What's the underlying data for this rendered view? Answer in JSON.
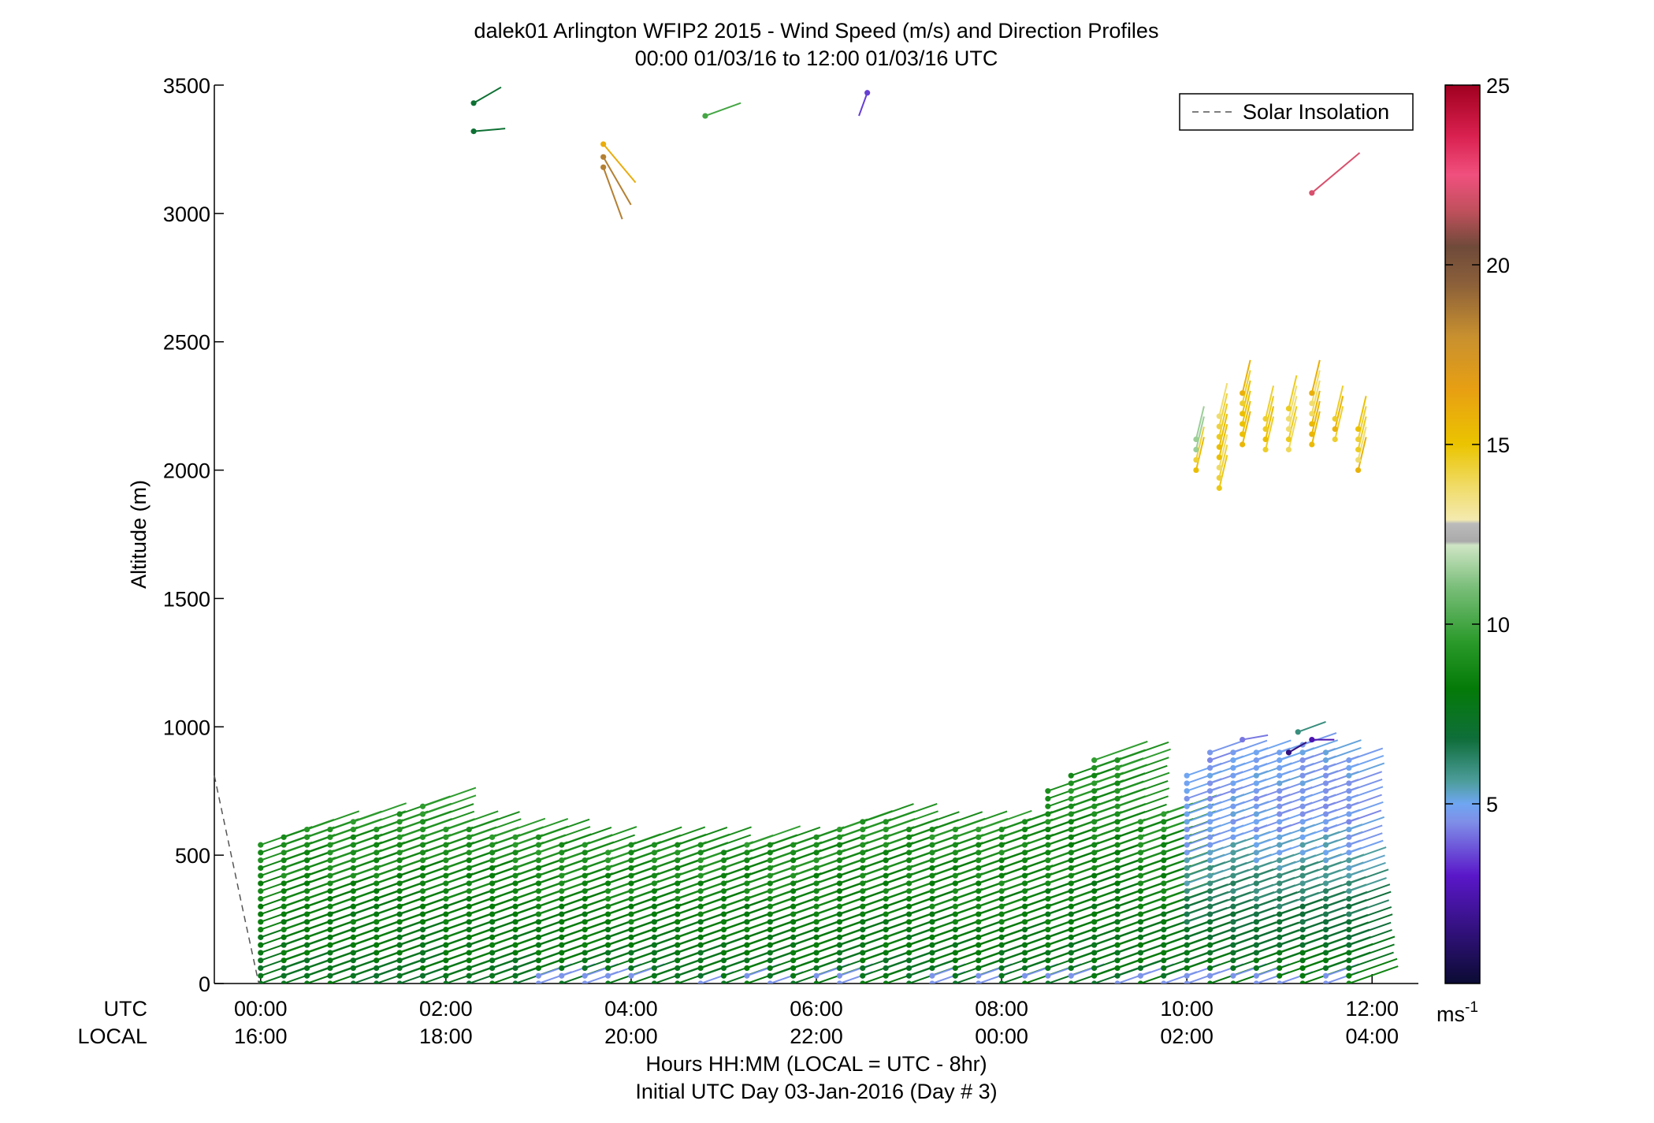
{
  "chart_data": {
    "type": "wind-barb-profile",
    "title_line1": "dalek01 Arlington WFIP2 2015 - Wind Speed (m/s) and Direction Profiles",
    "title_line2": "00:00 01/03/16 to 12:00 01/03/16  UTC",
    "ylabel": "Altitude (m)",
    "ylim": [
      0,
      3500
    ],
    "yticks": [
      "0",
      "500",
      "1000",
      "1500",
      "2000",
      "2500",
      "3000",
      "3500"
    ],
    "xlim_hours_utc": [
      -0.5,
      12.5
    ],
    "x_row_labels": [
      "UTC",
      "LOCAL"
    ],
    "x_tick_hours": [
      0,
      2,
      4,
      6,
      8,
      10,
      12
    ],
    "x_ticks_utc": [
      "00:00",
      "02:00",
      "04:00",
      "06:00",
      "08:00",
      "10:00",
      "12:00"
    ],
    "x_ticks_local": [
      "16:00",
      "18:00",
      "20:00",
      "22:00",
      "00:00",
      "02:00",
      "04:00"
    ],
    "xlabel_line1": "Hours HH:MM  (LOCAL = UTC - 8hr)",
    "xlabel_line2": "Initial UTC Day 03-Jan-2016 (Day # 3)",
    "legend": {
      "label": "Solar Insolation",
      "placement": "top-right",
      "style": "dashed gray"
    },
    "colorbar": {
      "range": [
        0,
        25
      ],
      "ticks": [
        "5",
        "10",
        "15",
        "20",
        "25"
      ],
      "unit_base": "ms",
      "unit_exp": "-1",
      "stops": [
        [
          0.0,
          "#0b0b33"
        ],
        [
          3.0,
          "#5a17c9"
        ],
        [
          4.5,
          "#7f8fe8"
        ],
        [
          5.0,
          "#6fa6f2"
        ],
        [
          5.6,
          "#4e9e9e"
        ],
        [
          6.8,
          "#0f6e3a"
        ],
        [
          8.2,
          "#047a08"
        ],
        [
          9.5,
          "#2a9a2a"
        ],
        [
          11.0,
          "#78bd78"
        ],
        [
          12.2,
          "#cfe5c5"
        ],
        [
          12.3,
          "#aaaaaa"
        ],
        [
          12.8,
          "#bbbbbb"
        ],
        [
          12.9,
          "#f4eab0"
        ],
        [
          13.8,
          "#f0dc6a"
        ],
        [
          15.0,
          "#ebc400"
        ],
        [
          16.5,
          "#e8a012"
        ],
        [
          18.0,
          "#c8902f"
        ],
        [
          19.5,
          "#8a5f3a"
        ],
        [
          20.5,
          "#6f4a3a"
        ],
        [
          21.5,
          "#c0505c"
        ],
        [
          22.5,
          "#f0507e"
        ],
        [
          23.6,
          "#d9204f"
        ],
        [
          25.0,
          "#a00020"
        ]
      ]
    },
    "solar_insolation_curve": {
      "x_hours": [
        -0.5,
        -0.2,
        -0.02
      ],
      "altitude_equiv_m": [
        810,
        300,
        0
      ]
    },
    "profile_times_hours": [
      0,
      0.25,
      0.5,
      0.75,
      1,
      1.25,
      1.5,
      1.75,
      2,
      2.25,
      2.5,
      2.75,
      3,
      3.25,
      3.5,
      3.75,
      4,
      4.25,
      4.5,
      4.75,
      5,
      5.25,
      5.5,
      5.75,
      6,
      6.25,
      6.5,
      6.75,
      7,
      7.25,
      7.5,
      7.75,
      8,
      8.25,
      8.5,
      8.75,
      9,
      9.25,
      9.5,
      9.75,
      10,
      10.25,
      10.5,
      10.75,
      11,
      11.25,
      11.5,
      11.75
    ],
    "profile_top_altitudes_m": [
      560,
      570,
      600,
      620,
      640,
      600,
      660,
      690,
      620,
      620,
      590,
      590,
      570,
      560,
      550,
      530,
      540,
      560,
      550,
      540,
      530,
      550,
      540,
      540,
      590,
      600,
      650,
      650,
      600,
      600,
      610,
      600,
      600,
      640,
      750,
      830,
      870,
      880,
      650,
      680,
      830,
      900,
      920,
      900,
      900,
      950,
      920,
      870
    ],
    "profile_level_spacing_m": 30,
    "low_level_jet": {
      "description": "light-blue low speed barbs near surface",
      "speed_ms": 4.5
    },
    "upper_cluster": {
      "x_hours": [
        10.1,
        10.35,
        10.6,
        10.85,
        11.1,
        11.35,
        11.6,
        11.85
      ],
      "bottom_m": [
        2000,
        1930,
        2100,
        2080,
        2080,
        2100,
        2120,
        2000
      ],
      "top_m": [
        2130,
        2230,
        2310,
        2230,
        2260,
        2310,
        2230,
        2180
      ],
      "speed_ms": 14.8
    },
    "scattered_barbs": [
      {
        "x_hours": 2.3,
        "alt_m": 3430,
        "speed_ms": 7.0,
        "dir_deg": 240
      },
      {
        "x_hours": 2.3,
        "alt_m": 3320,
        "speed_ms": 7.0,
        "dir_deg": 265
      },
      {
        "x_hours": 3.7,
        "alt_m": 3270,
        "speed_ms": 16.0,
        "dir_deg": 320
      },
      {
        "x_hours": 3.7,
        "alt_m": 3220,
        "speed_ms": 18.5,
        "dir_deg": 330
      },
      {
        "x_hours": 3.7,
        "alt_m": 3180,
        "speed_ms": 18.5,
        "dir_deg": 340
      },
      {
        "x_hours": 4.8,
        "alt_m": 3380,
        "speed_ms": 10.0,
        "dir_deg": 290
      },
      {
        "x_hours": 6.55,
        "alt_m": 3470,
        "speed_ms": 3.5,
        "dir_deg": 20
      },
      {
        "x_hours": 11.35,
        "alt_m": 3080,
        "speed_ms": 22.0,
        "dir_deg": 230
      },
      {
        "x_hours": 10.6,
        "alt_m": 950,
        "speed_ms": 4.2,
        "dir_deg": 260
      },
      {
        "x_hours": 11.1,
        "alt_m": 900,
        "speed_ms": 1.5,
        "dir_deg": 300
      },
      {
        "x_hours": 11.2,
        "alt_m": 980,
        "speed_ms": 6.0,
        "dir_deg": 290
      },
      {
        "x_hours": 11.35,
        "alt_m": 950,
        "speed_ms": 2.5,
        "dir_deg": 270
      }
    ]
  }
}
